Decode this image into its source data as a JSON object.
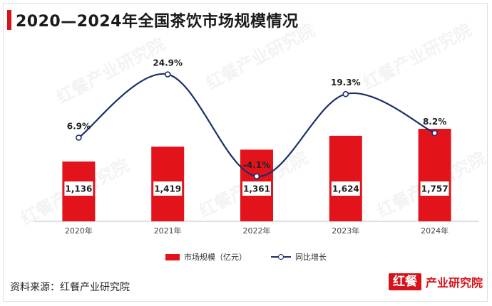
{
  "chart_data": {
    "type": "bar",
    "title": "2020—2024年全国茶饮市场规模情况",
    "categories": [
      "2020年",
      "2021年",
      "2022年",
      "2023年",
      "2024年"
    ],
    "series": [
      {
        "name": "市场规模（亿元）",
        "type": "bar",
        "values": [
          1136,
          1419,
          1361,
          1624,
          1757
        ],
        "labels": [
          "1,136",
          "1,419",
          "1,361",
          "1,624",
          "1,757"
        ],
        "color": "#e3131b"
      },
      {
        "name": "同比增长",
        "type": "line",
        "values": [
          6.9,
          24.9,
          -4.1,
          19.3,
          8.2
        ],
        "labels": [
          "6.9%",
          "24.9%",
          "-4.1%",
          "19.3%",
          "8.2%"
        ],
        "color": "#1b2f6b"
      }
    ],
    "grid": false,
    "legend": "bottom-center"
  },
  "source": "资料来源：红餐产业研究院",
  "brand": {
    "mark": "红餐",
    "text": "产业研究院"
  },
  "watermark": "红餐产业研究院",
  "colors": {
    "accent": "#d7141a",
    "bar": "#e3131b",
    "line": "#1b2f6b"
  }
}
